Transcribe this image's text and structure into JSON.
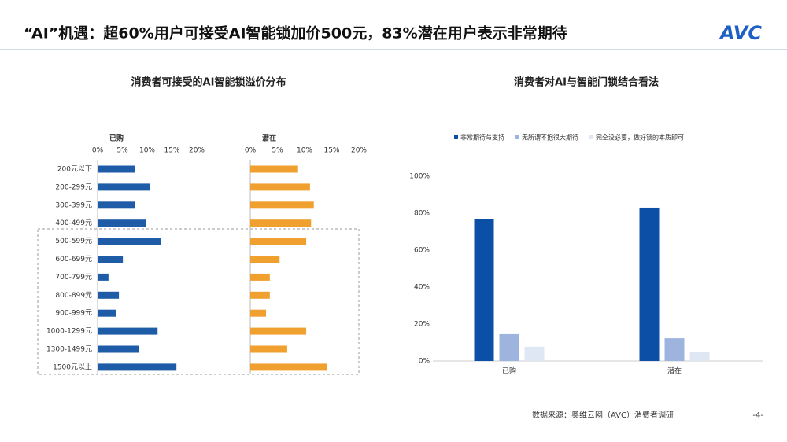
{
  "header": {
    "title": "“AI”机遇：超60%用户可接受AI智能锁加价500元，83%潜在用户表示非常期待",
    "logo": "AVC"
  },
  "chart_data": [
    {
      "type": "bar",
      "orientation": "horizontal",
      "title": "消费者可接受的AI智能锁溢价分布",
      "categories": [
        "200元以下",
        "200-299元",
        "300-399元",
        "400-499元",
        "500-599元",
        "600-699元",
        "700-799元",
        "800-899元",
        "900-999元",
        "1000-1299元",
        "1300-1499元",
        "1500元以上"
      ],
      "series": [
        {
          "name": "已购",
          "color": "#1f5ca8",
          "values": [
            7.6,
            10.6,
            7.5,
            9.7,
            12.7,
            5.1,
            2.2,
            4.3,
            3.8,
            12.1,
            8.4,
            15.9
          ]
        },
        {
          "name": "潜在",
          "color": "#f0a02e",
          "values": [
            8.8,
            11.0,
            11.7,
            11.2,
            10.3,
            5.4,
            3.6,
            3.6,
            2.9,
            10.3,
            6.8,
            14.1
          ]
        }
      ],
      "xlim": [
        0,
        20
      ],
      "xticks": [
        {
          "value": 0,
          "label": "0%"
        },
        {
          "value": 5,
          "label": "5%"
        },
        {
          "value": 10,
          "label": "10%"
        },
        {
          "value": 15,
          "label": "15%"
        },
        {
          "value": 20,
          "label": "20%"
        }
      ]
    },
    {
      "type": "bar",
      "orientation": "vertical",
      "title": "消费者对AI与智能门锁结合看法",
      "categories": [
        "已购",
        "潜在"
      ],
      "series": [
        {
          "name": "非常期待与支持",
          "color": "#0b4fa6",
          "values": [
            77,
            83
          ]
        },
        {
          "name": "无所谓不抱很大期待",
          "color": "#9db4de",
          "values": [
            14.5,
            12.3
          ]
        },
        {
          "name": "完全没必要，做好锁的本质即可",
          "color": "#dfe6f4",
          "values": [
            7.7,
            5.1
          ]
        }
      ],
      "ylim": [
        0,
        100
      ],
      "yticks": [
        {
          "value": 0,
          "label": "0%"
        },
        {
          "value": 20,
          "label": "20%"
        },
        {
          "value": 40,
          "label": "40%"
        },
        {
          "value": 60,
          "label": "60%"
        },
        {
          "value": 80,
          "label": "80%"
        },
        {
          "value": 100,
          "label": "100%"
        }
      ],
      "legend": "top"
    }
  ],
  "footer": {
    "source": "数据来源：奥维云网（AVC）消费者调研",
    "page": "-4-"
  }
}
